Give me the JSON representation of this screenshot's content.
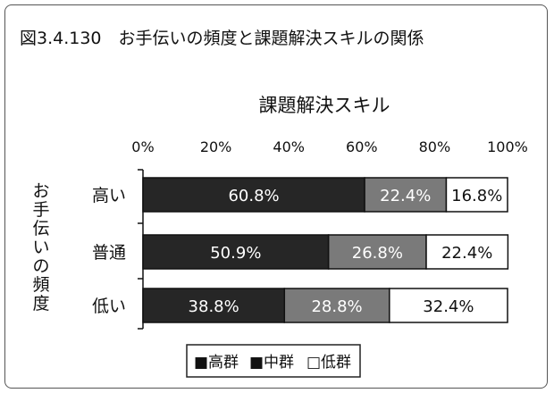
{
  "figure_title": "図3.4.130　お手伝いの頻度と課題解決スキルの関係",
  "chart_data": {
    "type": "bar",
    "stacked": true,
    "orientation": "horizontal",
    "title": "課題解決スキル",
    "ylabel": "お手伝いの頻度",
    "categories": [
      "高い",
      "普通",
      "低い"
    ],
    "series": [
      {
        "name": "高群",
        "values": [
          60.8,
          50.9,
          38.8
        ],
        "color": "#262626",
        "label_color": "#ffffff"
      },
      {
        "name": "中群",
        "values": [
          22.4,
          26.8,
          28.8
        ],
        "color": "#7a7a7a",
        "label_color": "#ffffff"
      },
      {
        "name": "低群",
        "values": [
          16.8,
          22.4,
          32.4
        ],
        "color": "#ffffff",
        "label_color": "#111111"
      }
    ],
    "x_ticks": [
      "0%",
      "20%",
      "40%",
      "60%",
      "80%",
      "100%"
    ],
    "xlim": [
      0,
      100
    ],
    "grid": false,
    "legend_position": "bottom",
    "legend_labels": [
      "■高群",
      "■中群",
      "□低群"
    ]
  }
}
